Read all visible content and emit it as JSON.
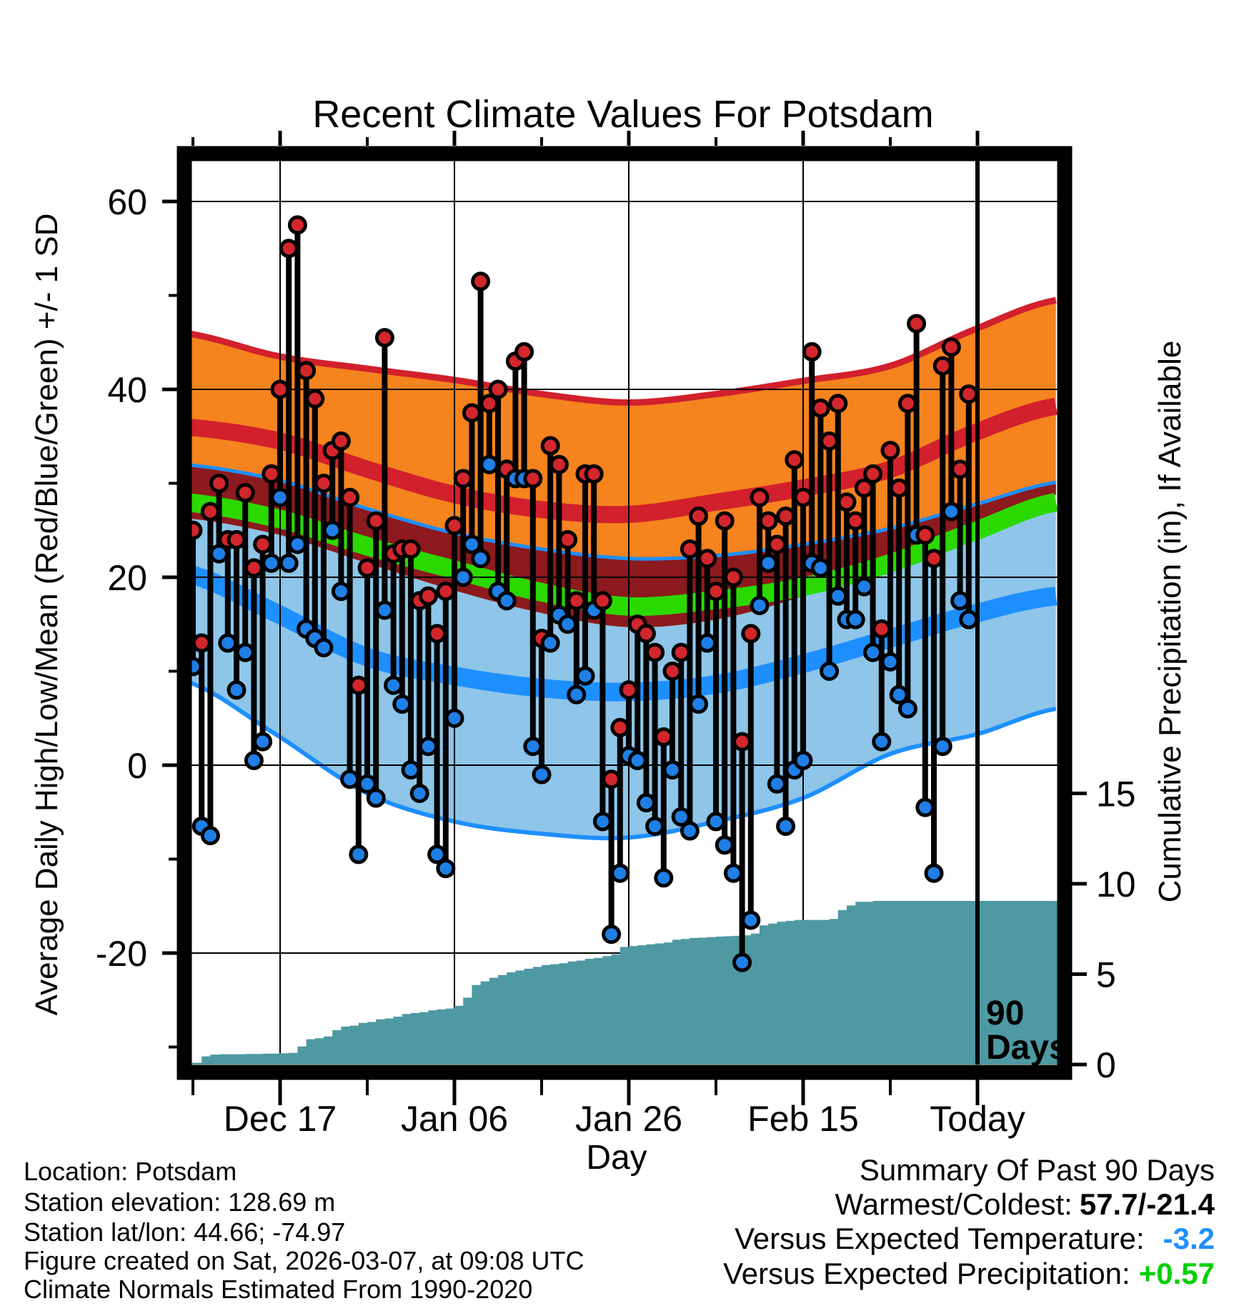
{
  "title": "Recent Climate Values For Potsdam",
  "axes": {
    "left": {
      "label": "Average Daily High/Low/Mean (Red/Blue/Green) +/- 1 SD",
      "ticks": [
        {
          "value": 60,
          "label": "60"
        },
        {
          "value": 40,
          "label": "40"
        },
        {
          "value": 20,
          "label": "20"
        },
        {
          "value": 0,
          "label": "0"
        },
        {
          "value": -20,
          "label": "-20"
        }
      ],
      "minor_ticks": [
        50,
        30,
        10,
        -10,
        -30
      ]
    },
    "right": {
      "label": "Cumulative Precipitation (in), If Available",
      "ticks": [
        {
          "value": 15,
          "label": "15"
        },
        {
          "value": 10,
          "label": "10"
        },
        {
          "value": 5,
          "label": "5"
        },
        {
          "value": 0,
          "label": "0"
        }
      ]
    },
    "x": {
      "label": "Day",
      "ticks": [
        {
          "day": 10,
          "label": "Dec 17"
        },
        {
          "day": 30,
          "label": "Jan 06"
        },
        {
          "day": 50,
          "label": "Jan 26"
        },
        {
          "day": 70,
          "label": "Feb 15"
        },
        {
          "day": 90,
          "label": "Today"
        }
      ],
      "minor_tick_days": [
        0,
        20,
        40,
        60,
        80
      ]
    }
  },
  "annotations": {
    "period_line": {
      "day": 90,
      "label_top": "90",
      "label_bottom": "Days"
    }
  },
  "chart_data": {
    "type": "composite",
    "description": "Daily observed high/low temperature stems with climatological normal bands and cumulative precipitation",
    "temp_axis_range": [
      -32,
      64.3
    ],
    "day_axis_range": [
      -0.65,
      99.3
    ],
    "precip_axis_range": [
      0,
      19
    ],
    "daily": {
      "start_day": 0,
      "high": [
        25,
        13,
        27,
        30,
        24,
        24,
        29,
        21,
        23.5,
        31,
        40,
        55,
        57.5,
        42,
        39,
        30,
        33.5,
        34.5,
        28.5,
        8.5,
        21,
        26,
        45.5,
        22.5,
        23,
        23,
        17.5,
        18,
        14,
        18.5,
        25.5,
        30.5,
        37.5,
        51.5,
        38.5,
        40,
        31.5,
        43,
        44,
        30.5,
        13.5,
        34,
        32,
        24,
        17.5,
        31,
        31,
        17.5,
        -1.5,
        4,
        8,
        15,
        14,
        12,
        3,
        10,
        12,
        23,
        26.5,
        22,
        18.5,
        26,
        20,
        2.5,
        14,
        28.5,
        26,
        23.5,
        26.5,
        32.5,
        28.5,
        44,
        38,
        34.5,
        38.5,
        28,
        26,
        29.5,
        31,
        14.5,
        33.5,
        29.5,
        38.5,
        47,
        24.5,
        22,
        42.5,
        44.5,
        31.5,
        39.5
      ],
      "low": [
        10.5,
        -6.5,
        -7.5,
        22.5,
        13,
        8,
        12,
        0.5,
        2.5,
        21.5,
        28.5,
        21.5,
        23.5,
        14.5,
        13.5,
        12.5,
        25,
        18.5,
        -1.5,
        -9.5,
        -2,
        -3.5,
        16.5,
        8.5,
        6.5,
        -0.5,
        -3,
        2,
        -9.5,
        -11,
        5,
        20,
        23.5,
        22,
        32,
        18.5,
        17.5,
        30.5,
        30.5,
        2,
        -1,
        13,
        16,
        15,
        7.5,
        9.5,
        16.5,
        -6,
        -18,
        -11.5,
        1,
        0.5,
        -4,
        -6.5,
        -12,
        -0.5,
        -5.5,
        -7,
        6.5,
        13,
        -6,
        -8.5,
        -11.5,
        -21,
        -16.5,
        17,
        21.5,
        -2,
        -6.5,
        -0.5,
        0.5,
        21.5,
        21,
        10,
        18,
        15.5,
        15.5,
        19,
        12,
        2.5,
        11,
        7.5,
        6,
        24.5,
        -4.5,
        -11.5,
        2,
        27,
        17.5,
        15.5
      ]
    },
    "bands": {
      "days": [
        -1,
        10,
        20,
        30,
        40,
        50,
        60,
        70,
        80,
        90,
        99
      ],
      "high_plus_sd": [
        46,
        43.5,
        42.2,
        41.0,
        39.5,
        38.6,
        39.5,
        40.9,
        42.5,
        46.5,
        49.5
      ],
      "mean_high": [
        36,
        34.5,
        31.5,
        28.8,
        27.2,
        26.7,
        28.0,
        29.5,
        31.5,
        35.5,
        38.2
      ],
      "low_plus_sd": [
        32,
        30.3,
        27.3,
        24.7,
        23.0,
        22.0,
        22.3,
        23.5,
        25.2,
        27.8,
        30.1
      ],
      "mean_temp": [
        28,
        26.2,
        23.3,
        20.8,
        18.4,
        16.9,
        17.6,
        19.0,
        21.5,
        25.0,
        28.0
      ],
      "high_minus_sd": [
        26.3,
        24.5,
        21.5,
        18.6,
        16.2,
        14.7,
        15.5,
        18.0,
        21.5,
        25.5,
        28.8
      ],
      "mean_low": [
        20.5,
        16.0,
        11.5,
        9.5,
        8.2,
        7.8,
        8.6,
        10.8,
        13.5,
        16.2,
        18.0
      ],
      "low_minus_sd": [
        9.0,
        3.0,
        -3.0,
        -6.0,
        -7.3,
        -7.7,
        -6.0,
        -3.5,
        1.2,
        3.3,
        6.0
      ]
    },
    "precip_cumulative": {
      "start_day": 0,
      "values": [
        0.1,
        0.45,
        0.55,
        0.57,
        0.57,
        0.57,
        0.58,
        0.58,
        0.6,
        0.6,
        0.62,
        0.65,
        1.0,
        1.4,
        1.45,
        1.55,
        1.9,
        2.1,
        2.15,
        2.3,
        2.35,
        2.5,
        2.55,
        2.65,
        2.8,
        2.85,
        2.9,
        3.0,
        3.05,
        3.1,
        3.25,
        3.7,
        4.4,
        4.6,
        4.8,
        4.95,
        5.1,
        5.2,
        5.3,
        5.4,
        5.5,
        5.55,
        5.6,
        5.7,
        5.75,
        5.85,
        5.9,
        6.0,
        6.1,
        6.5,
        6.55,
        6.6,
        6.65,
        6.7,
        6.75,
        6.9,
        6.95,
        7.0,
        7.02,
        7.05,
        7.08,
        7.1,
        7.12,
        7.15,
        7.25,
        7.7,
        7.8,
        7.9,
        7.95,
        8.0,
        8.0,
        8.0,
        8.0,
        8.05,
        8.55,
        8.8,
        9.0,
        9.0,
        9.05,
        9.05,
        9.05,
        9.05,
        9.05,
        9.05,
        9.05,
        9.05,
        9.05,
        9.05,
        9.05,
        9.05
      ]
    }
  },
  "footer": {
    "lines": [
      "Location: Potsdam",
      "Station elevation: 128.69 m",
      "Station lat/lon: 44.66; -74.97",
      "Figure created on Sat, 2026-03-07, at 09:08 UTC",
      "Climate Normals Estimated From 1990-2020"
    ]
  },
  "summary": {
    "heading": "Summary Of Past 90 Days",
    "warmest_coldest_label": "Warmest/Coldest:",
    "warmest_coldest_value": "57.7/-21.4",
    "vs_temp_label": "Versus Expected Temperature:",
    "vs_temp_value": "-3.2",
    "vs_precip_label": "Versus Expected Precipitation:",
    "vs_precip_value": "+0.57"
  },
  "colors": {
    "orange_band": "#F5831E",
    "crimson_line": "#D2202C",
    "maroon_overlap": "#8C1A1E",
    "green_mean": "#2BD900",
    "light_blue_band": "#8EC5E8",
    "bright_blue": "#1E8FFF",
    "teal_precip": "#4E99A2",
    "dot_red": "#D2262C",
    "dot_blue": "#1F7FE6",
    "vs_temp_value_color": "#1E90FF",
    "vs_precip_value_color": "#00D000",
    "black": "#000000"
  }
}
